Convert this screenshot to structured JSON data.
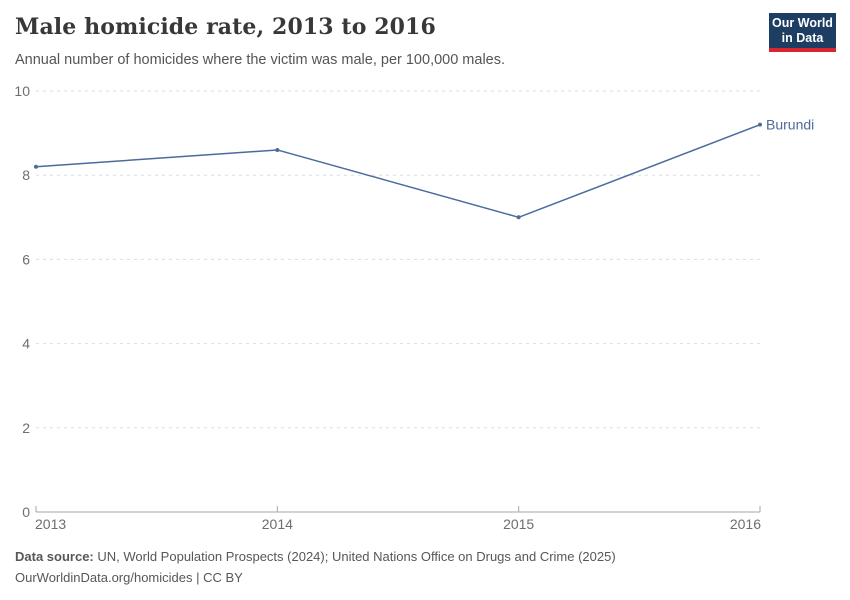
{
  "header": {
    "title": "Male homicide rate, 2013 to 2016",
    "subtitle": "Annual number of homicides where the victim was male, per 100,000 males.",
    "logo": {
      "line1": "Our World",
      "line2": "in Data"
    }
  },
  "chart_data": {
    "type": "line",
    "title": "Male homicide rate, 2013 to 2016",
    "subtitle": "Annual number of homicides where the victim was male, per 100,000 males.",
    "x": [
      2013,
      2014,
      2015,
      2016
    ],
    "series": [
      {
        "name": "Burundi",
        "values": [
          8.2,
          8.6,
          7.0,
          9.2
        ]
      }
    ],
    "entity_label": "Burundi",
    "xlabel": "",
    "ylabel": "",
    "ylim": [
      0,
      10
    ],
    "yticks": [
      0,
      2,
      4,
      6,
      8,
      10
    ],
    "xticks": [
      2013,
      2014,
      2015,
      2016
    ],
    "grid": "horizontal-dashed",
    "legend_position": "end-of-line-label",
    "markers": true
  },
  "footer": {
    "data_source_label": "Data source:",
    "data_source_text": " UN, World Population Prospects (2024); United Nations Office on Drugs and Crime (2025)",
    "attribution": "OurWorldinData.org/homicides | CC BY"
  },
  "colors": {
    "series_blue": "#4c6a9c",
    "gridline": "#dddddd",
    "axis_line": "#a6a6a6",
    "tick_text": "#6e6e6e",
    "title_text": "#383838",
    "subtitle_text": "#555555",
    "footer_text": "#575757",
    "logo_bg": "#1d3d63",
    "logo_red": "#d8252e",
    "background": "#ffffff"
  }
}
